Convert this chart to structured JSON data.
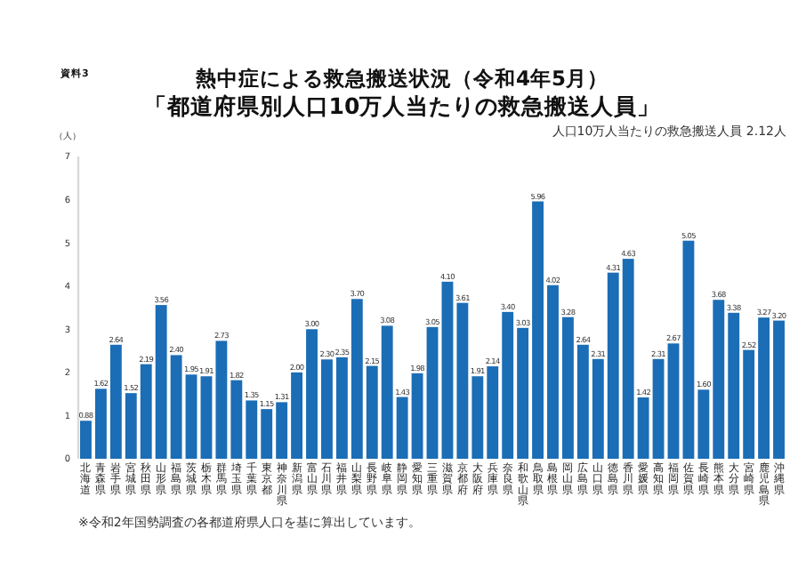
{
  "chart_data": {
    "type": "bar",
    "title": "熱中症による救急搬送状況（令和4年5月）",
    "subtitle": "「都道府県別人口10万人当たりの救急搬送人員」",
    "ylabel": "（人）",
    "annotations": [
      "資料3",
      "人口10万人当たりの救急搬送人員 2.12人",
      "※令和2年国勢調査の各都道府県人口を基に算出しています。"
    ],
    "categories": [
      "北海道",
      "青森県",
      "岩手県",
      "宮城県",
      "秋田県",
      "山形県",
      "福島県",
      "茨城県",
      "栃木県",
      "群馬県",
      "埼玉県",
      "千葉県",
      "東京都",
      "神奈川県",
      "新潟県",
      "富山県",
      "石川県",
      "福井県",
      "山梨県",
      "長野県",
      "岐阜県",
      "静岡県",
      "愛知県",
      "三重県",
      "滋賀県",
      "京都府",
      "大阪府",
      "兵庫県",
      "奈良県",
      "和歌山県",
      "鳥取県",
      "島根県",
      "岡山県",
      "広島県",
      "山口県",
      "徳島県",
      "香川県",
      "愛媛県",
      "高知県",
      "福岡県",
      "佐賀県",
      "長崎県",
      "熊本県",
      "大分県",
      "宮崎県",
      "鹿児島県",
      "沖縄県"
    ],
    "values": [
      0.88,
      1.62,
      2.64,
      1.52,
      2.19,
      3.56,
      2.4,
      1.95,
      1.91,
      2.73,
      1.82,
      1.35,
      1.15,
      1.31,
      2.0,
      3.0,
      2.3,
      2.35,
      3.7,
      2.15,
      3.08,
      1.43,
      1.98,
      3.05,
      4.1,
      3.61,
      1.91,
      2.14,
      3.4,
      3.03,
      5.96,
      4.02,
      3.28,
      2.64,
      2.31,
      4.31,
      4.63,
      1.42,
      2.31,
      2.67,
      5.05,
      1.6,
      3.68,
      3.38,
      2.52,
      3.27,
      3.2
    ],
    "value_labels": [
      "0.88",
      "1.62",
      "2.64",
      "1.52",
      "2.19",
      "3.56",
      "2.40",
      "1.95",
      "1.91",
      "2.73",
      "1.82",
      "1.35",
      "1.15",
      "1.31",
      "2.00",
      "3.00",
      "2.30",
      "2.35",
      "3.70",
      "2.15",
      "3.08",
      "1.43",
      "1.98",
      "3.05",
      "4.10",
      "3.61",
      "1.91",
      "2.14",
      "3.40",
      "3.03",
      "5.96",
      "4.02",
      "3.28",
      "2.64",
      "2.31",
      "4.31",
      "4.63",
      "1.42",
      "2.31",
      "2.67",
      "5.05",
      "1.60",
      "3.68",
      "3.38",
      "2.52",
      "3.27",
      "3.20"
    ],
    "color": "#1b6db6",
    "ylim": [
      0,
      7
    ],
    "yticks": [
      0,
      1,
      2,
      3,
      4,
      5,
      6,
      7
    ]
  }
}
